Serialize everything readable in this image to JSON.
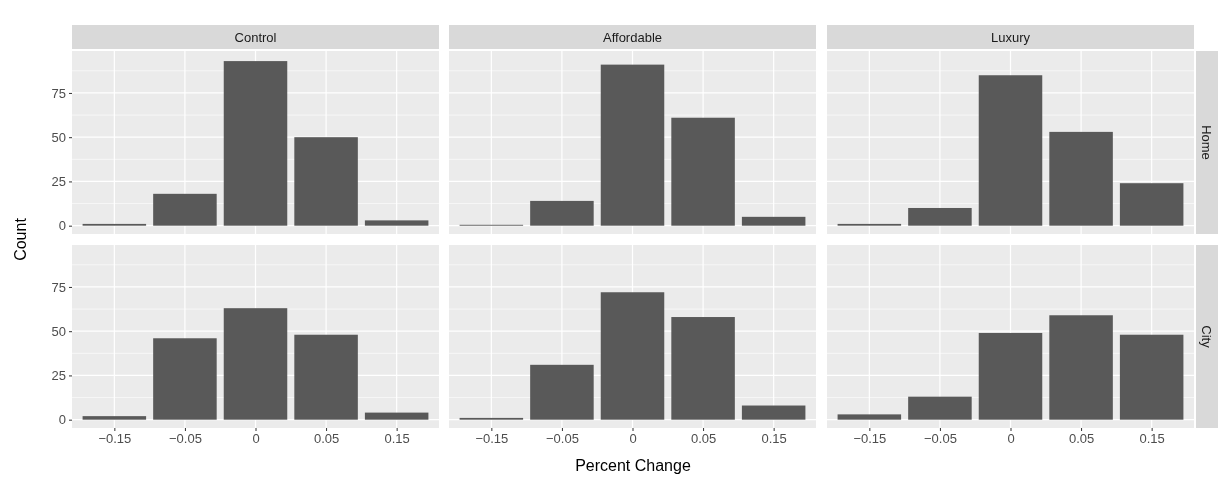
{
  "chart_data": [
    {
      "type": "bar",
      "title": "Control",
      "ylabel": "Count",
      "categories": [
        "−0.15",
        "−0.05",
        "0",
        "0.05",
        "0.15"
      ],
      "values": [
        1,
        18,
        93,
        50,
        3
      ],
      "color": "#595959",
      "ylim": [
        -4.7,
        98.7
      ],
      "yticks": [
        0,
        25,
        50,
        75
      ],
      "grid": true,
      "tick_labels": "y"
    },
    {
      "type": "bar",
      "title": "Affordable",
      "categories": [
        "−0.15",
        "−0.05",
        "0",
        "0.05",
        "0.15"
      ],
      "values": [
        0.5,
        14,
        91,
        61,
        5
      ],
      "color": "#595959",
      "ylim": [
        -4.7,
        98.7
      ],
      "yticks": [
        0,
        25,
        50,
        75
      ],
      "grid": true,
      "tick_labels": false
    },
    {
      "type": "bar",
      "title": "Luxury",
      "y2label": "Home",
      "categories": [
        "−0.15",
        "−0.05",
        "0",
        "0.05",
        "0.15"
      ],
      "values": [
        1,
        10,
        85,
        53,
        24
      ],
      "color": "#595959",
      "ylim": [
        -4.7,
        98.7
      ],
      "yticks": [
        0,
        25,
        50,
        75
      ],
      "grid": true,
      "tick_labels": false
    },
    {
      "type": "bar",
      "categories": [
        "−0.15",
        "−0.05",
        "0",
        "0.05",
        "0.15"
      ],
      "values": [
        2,
        46,
        63,
        48,
        4
      ],
      "color": "#595959",
      "ylim": [
        -4.7,
        98.7
      ],
      "yticks": [
        0,
        25,
        50,
        75
      ],
      "grid": true
    },
    {
      "type": "bar",
      "xlabel": "Percent Change",
      "categories": [
        "−0.15",
        "−0.05",
        "0",
        "0.05",
        "0.15"
      ],
      "values": [
        1,
        31,
        72,
        58,
        8
      ],
      "color": "#595959",
      "ylim": [
        -4.7,
        98.7
      ],
      "yticks": [
        0,
        25,
        50,
        75
      ],
      "grid": true,
      "tick_labels": "x"
    },
    {
      "type": "bar",
      "y2label": "City",
      "categories": [
        "−0.15",
        "−0.05",
        "0",
        "0.05",
        "0.15"
      ],
      "values": [
        3,
        13,
        49,
        59,
        48
      ],
      "color": "#595959",
      "ylim": [
        -4.7,
        98.7
      ],
      "yticks": [
        0,
        25,
        50,
        75
      ],
      "grid": true,
      "tick_labels": "x"
    }
  ]
}
